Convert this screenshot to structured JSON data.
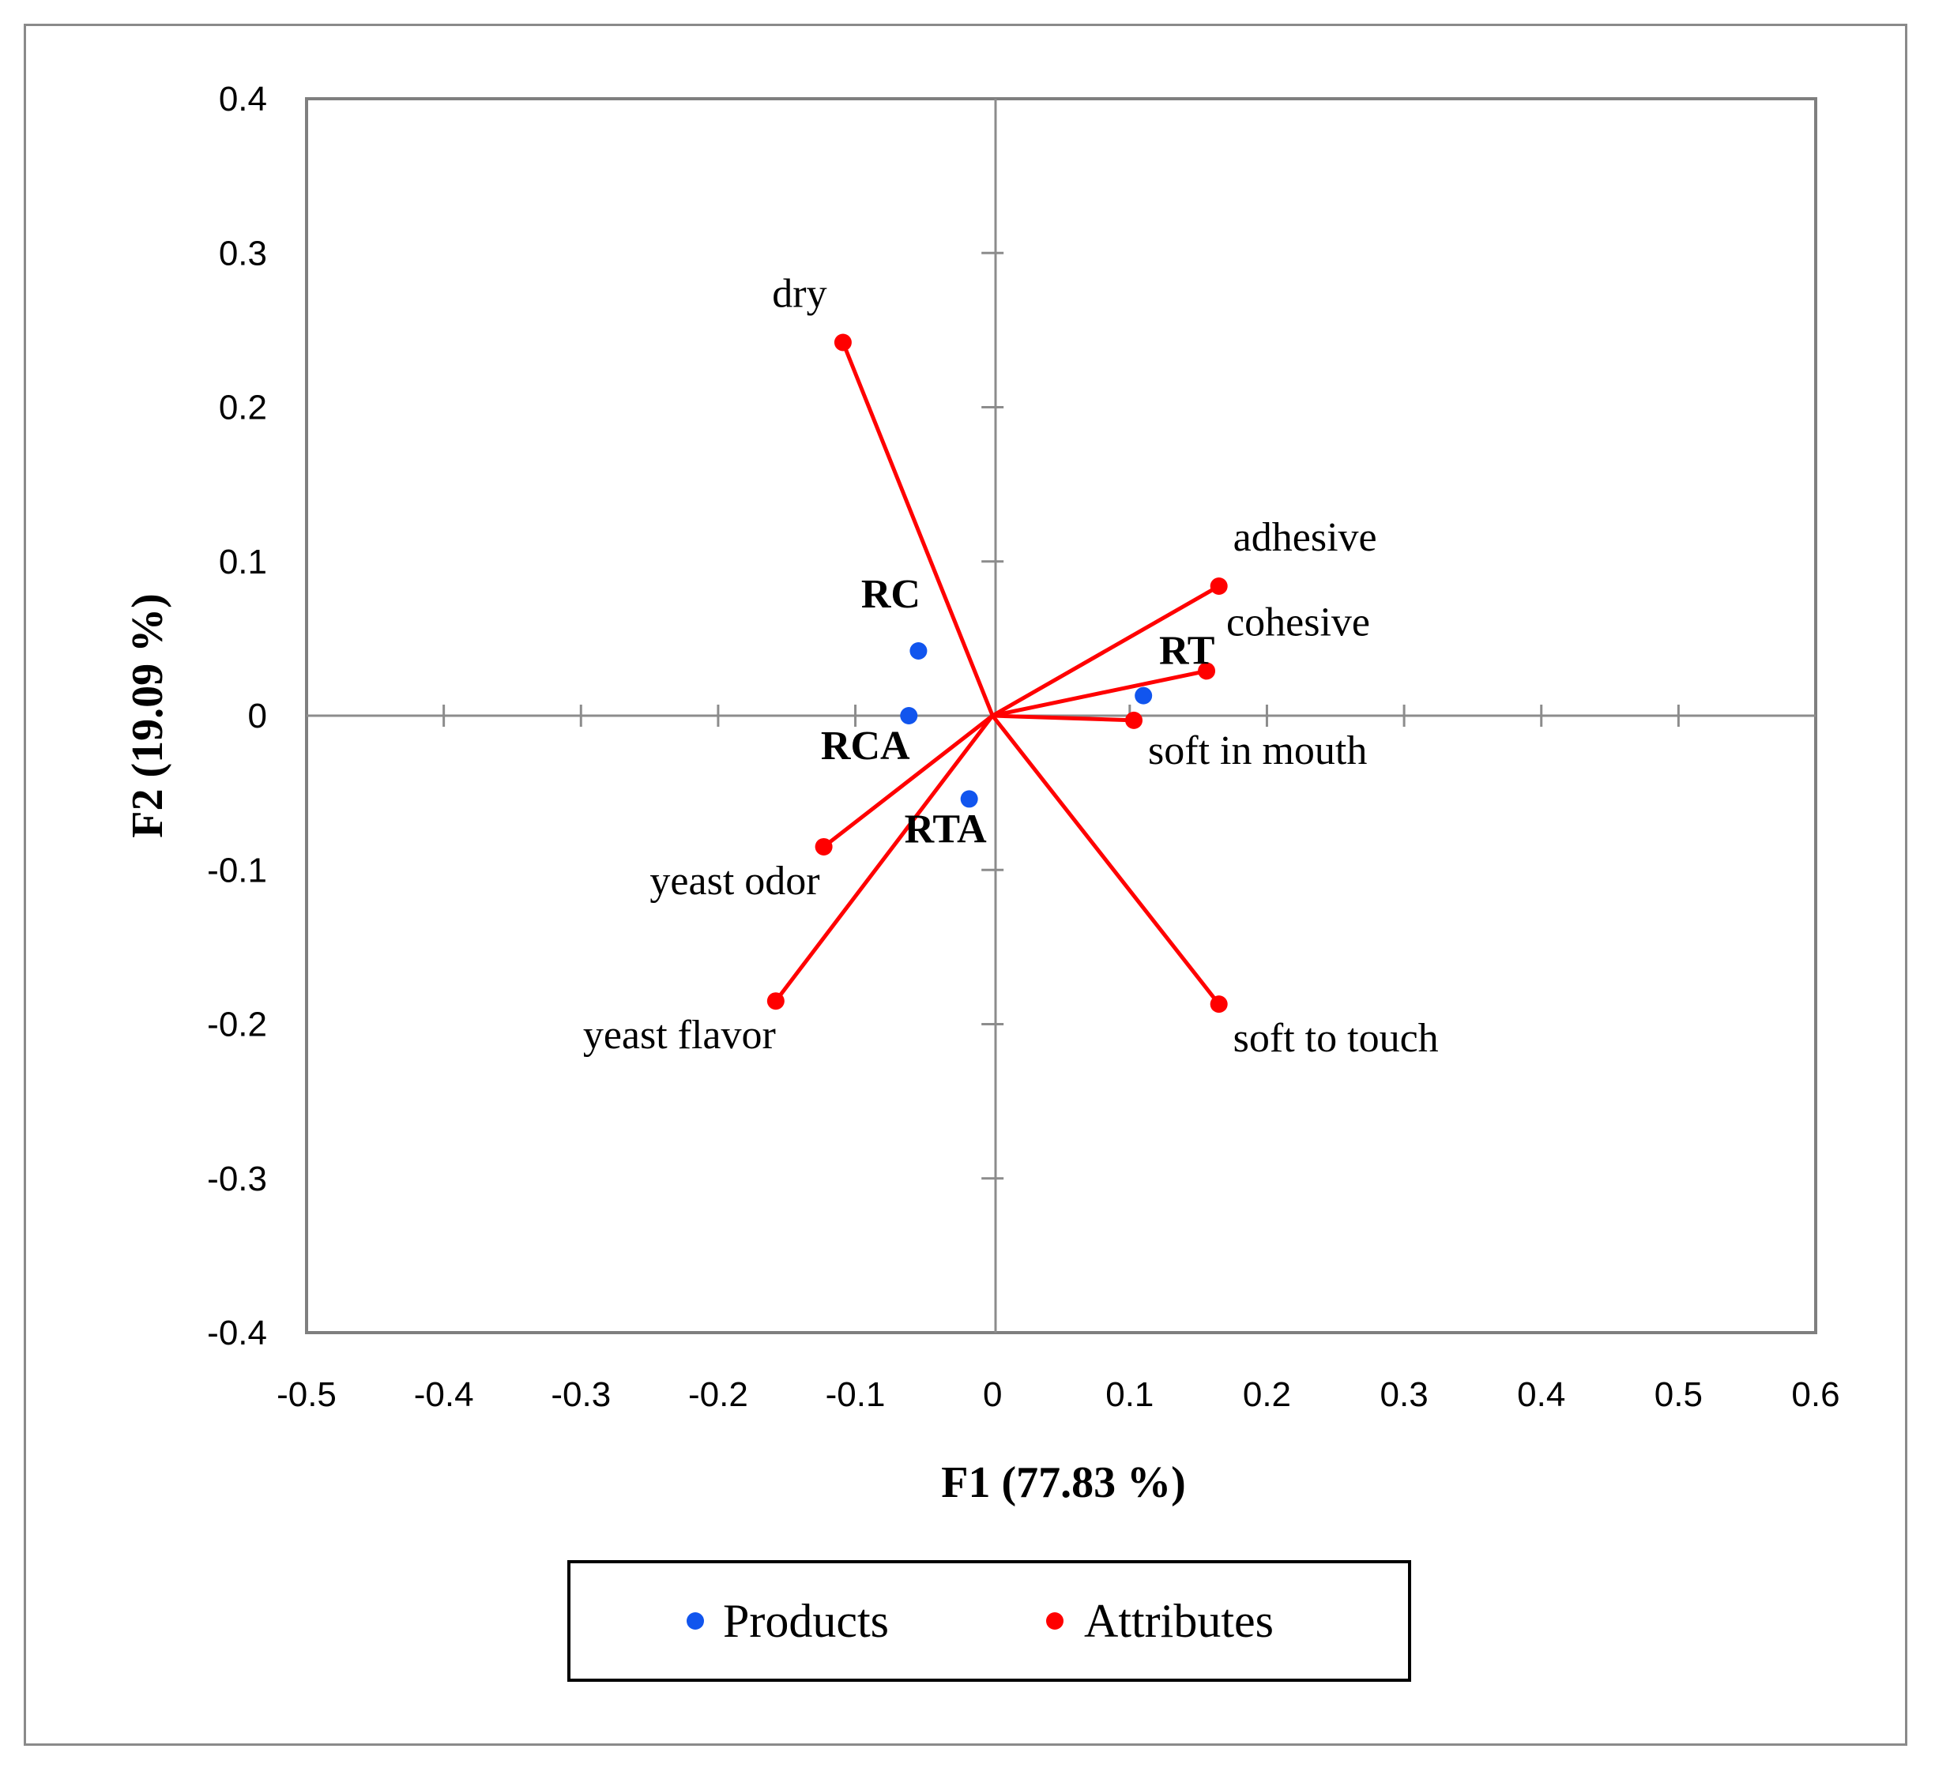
{
  "chart_data": {
    "type": "scatter",
    "title": "",
    "xlabel": "F1 (77.83 %)",
    "ylabel": "F2 (19.09 %)",
    "xlim": [
      -0.5,
      0.6
    ],
    "ylim": [
      -0.4,
      0.4
    ],
    "xticks": [
      "-0.5",
      "-0.4",
      "-0.3",
      "-0.2",
      "-0.1",
      "0",
      "0.1",
      "0.2",
      "0.3",
      "0.4",
      "0.5",
      "0.6"
    ],
    "yticks": [
      "0.4",
      "0.3",
      "0.2",
      "0.1",
      "0",
      "-0.1",
      "-0.2",
      "-0.3",
      "-0.4"
    ],
    "grid": false,
    "legend_position": "bottom",
    "series": [
      {
        "name": "Products",
        "color": "#1155ee",
        "style": "points",
        "points": [
          {
            "label": "RC",
            "x": -0.054,
            "y": 0.042
          },
          {
            "label": "RCA",
            "x": -0.061,
            "y": 0.0
          },
          {
            "label": "RT",
            "x": 0.11,
            "y": 0.013
          },
          {
            "label": "RTA",
            "x": -0.017,
            "y": -0.054
          }
        ]
      },
      {
        "name": "Attributes",
        "color": "#ff0000",
        "style": "vectors-from-origin",
        "points": [
          {
            "label": "dry",
            "x": -0.109,
            "y": 0.242
          },
          {
            "label": "adhesive",
            "x": 0.165,
            "y": 0.084
          },
          {
            "label": "cohesive",
            "x": 0.156,
            "y": 0.029
          },
          {
            "label": "soft in mouth",
            "x": 0.103,
            "y": -0.003
          },
          {
            "label": "yeast odor",
            "x": -0.123,
            "y": -0.085
          },
          {
            "label": "yeast flavor",
            "x": -0.158,
            "y": -0.185
          },
          {
            "label": "soft to touch",
            "x": 0.165,
            "y": -0.187
          }
        ]
      }
    ]
  }
}
